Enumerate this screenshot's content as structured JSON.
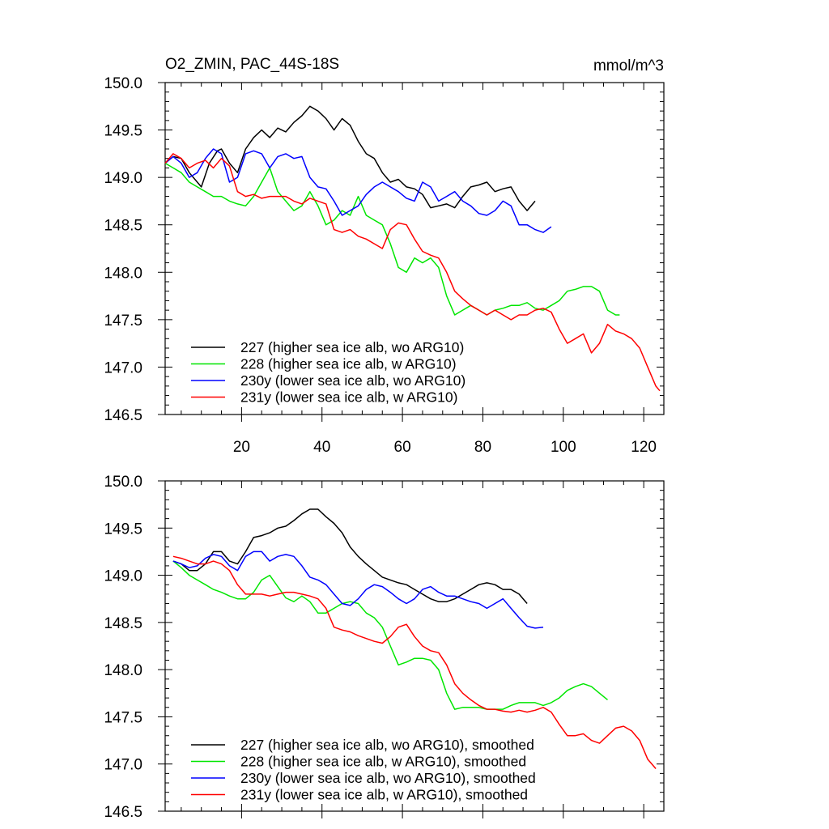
{
  "chart_data": [
    {
      "type": "line",
      "title": "O2_ZMIN, PAC_44S-18S",
      "units": "mmol/m^3",
      "xlim": [
        1,
        125
      ],
      "ylim": [
        146.5,
        150.0
      ],
      "xticks": [
        20,
        40,
        60,
        80,
        100,
        120
      ],
      "yticks": [
        146.5,
        147.0,
        147.5,
        148.0,
        148.5,
        149.0,
        149.5,
        150.0
      ],
      "ytick_labels": [
        "146.5",
        "147.0",
        "147.5",
        "148.0",
        "148.5",
        "149.0",
        "149.5",
        "150.0"
      ],
      "grid": false,
      "legend_position": "bottom-left",
      "series": [
        {
          "name": "227 (higher sea ice alb, wo ARG10)",
          "color": "#000000",
          "x": [
            1,
            3,
            5,
            7,
            9,
            10,
            12,
            14,
            15,
            17,
            19,
            21,
            23,
            25,
            27,
            29,
            31,
            33,
            35,
            37,
            39,
            41,
            43,
            45,
            47,
            49,
            51,
            53,
            55,
            57,
            59,
            61,
            63,
            65,
            67,
            69,
            71,
            73,
            75,
            77,
            79,
            81,
            83,
            85,
            87,
            89,
            91,
            93
          ],
          "y": [
            149.15,
            149.22,
            149.2,
            149.05,
            148.95,
            148.9,
            149.15,
            149.28,
            149.3,
            149.15,
            149.05,
            149.3,
            149.42,
            149.5,
            149.42,
            149.52,
            149.48,
            149.58,
            149.65,
            149.75,
            149.7,
            149.62,
            149.5,
            149.62,
            149.55,
            149.38,
            149.25,
            149.2,
            149.05,
            148.95,
            148.98,
            148.9,
            148.88,
            148.82,
            148.68,
            148.7,
            148.72,
            148.68,
            148.8,
            148.9,
            148.92,
            148.95,
            148.85,
            148.88,
            148.9,
            148.75,
            148.65,
            148.75
          ]
        },
        {
          "name": "228 (higher sea ice alb, w ARG10)",
          "color": "#00e600",
          "x": [
            1,
            3,
            5,
            7,
            9,
            11,
            13,
            15,
            17,
            19,
            21,
            23,
            25,
            27,
            29,
            31,
            33,
            35,
            37,
            39,
            41,
            43,
            45,
            47,
            49,
            51,
            53,
            55,
            57,
            59,
            61,
            63,
            65,
            67,
            69,
            71,
            73,
            75,
            77,
            79,
            81,
            83,
            85,
            87,
            89,
            91,
            93,
            95,
            97,
            99,
            101,
            103,
            105,
            107,
            109,
            111,
            113,
            114
          ],
          "y": [
            149.15,
            149.1,
            149.05,
            148.95,
            148.9,
            148.85,
            148.8,
            148.8,
            148.75,
            148.72,
            148.7,
            148.8,
            148.95,
            149.1,
            148.85,
            148.75,
            148.65,
            148.7,
            148.85,
            148.7,
            148.5,
            148.55,
            148.65,
            148.6,
            148.8,
            148.6,
            148.55,
            148.5,
            148.3,
            148.05,
            148.0,
            148.15,
            148.1,
            148.15,
            148.05,
            147.75,
            147.55,
            147.6,
            147.65,
            147.6,
            147.55,
            147.6,
            147.62,
            147.65,
            147.65,
            147.68,
            147.62,
            147.6,
            147.65,
            147.7,
            147.8,
            147.82,
            147.85,
            147.85,
            147.8,
            147.6,
            147.55,
            147.55
          ]
        },
        {
          "name": "230y (lower sea ice alb, wo ARG10)",
          "color": "#0000ff",
          "x": [
            1,
            3,
            5,
            7,
            9,
            11,
            13,
            15,
            17,
            19,
            21,
            23,
            25,
            27,
            29,
            31,
            33,
            35,
            37,
            39,
            41,
            43,
            45,
            47,
            49,
            51,
            53,
            55,
            57,
            59,
            61,
            63,
            65,
            67,
            69,
            71,
            73,
            75,
            77,
            79,
            81,
            83,
            85,
            87,
            89,
            91,
            93,
            95,
            97
          ],
          "y": [
            149.15,
            149.22,
            149.15,
            149.0,
            149.05,
            149.2,
            149.3,
            149.25,
            148.95,
            149.0,
            149.25,
            149.28,
            149.25,
            149.1,
            149.22,
            149.25,
            149.2,
            149.22,
            149.0,
            148.9,
            148.88,
            148.75,
            148.6,
            148.65,
            148.7,
            148.82,
            148.9,
            148.95,
            148.9,
            148.85,
            148.78,
            148.75,
            148.95,
            148.9,
            148.75,
            148.8,
            148.85,
            148.75,
            148.7,
            148.62,
            148.6,
            148.65,
            148.75,
            148.7,
            148.5,
            148.5,
            148.45,
            148.42,
            148.48
          ]
        },
        {
          "name": "231y (lower sea ice alb, w ARG10)",
          "color": "#ff0000",
          "x": [
            1,
            3,
            5,
            7,
            9,
            11,
            13,
            15,
            17,
            19,
            21,
            23,
            25,
            27,
            29,
            31,
            33,
            35,
            37,
            39,
            41,
            43,
            45,
            47,
            49,
            51,
            53,
            55,
            57,
            59,
            61,
            63,
            65,
            67,
            69,
            71,
            73,
            75,
            77,
            79,
            81,
            83,
            85,
            87,
            89,
            91,
            93,
            95,
            97,
            99,
            101,
            103,
            105,
            107,
            109,
            111,
            113,
            115,
            117,
            119,
            121,
            123,
            124
          ],
          "y": [
            149.15,
            149.25,
            149.2,
            149.1,
            149.15,
            149.18,
            149.1,
            149.2,
            149.12,
            148.85,
            148.8,
            148.82,
            148.78,
            148.8,
            148.8,
            148.8,
            148.75,
            148.72,
            148.78,
            148.75,
            148.72,
            148.45,
            148.42,
            148.45,
            148.38,
            148.35,
            148.3,
            148.25,
            148.45,
            148.52,
            148.5,
            148.35,
            148.22,
            148.18,
            148.15,
            148.0,
            147.8,
            147.72,
            147.65,
            147.6,
            147.55,
            147.6,
            147.55,
            147.5,
            147.55,
            147.55,
            147.6,
            147.62,
            147.58,
            147.4,
            147.25,
            147.3,
            147.35,
            147.15,
            147.25,
            147.45,
            147.38,
            147.35,
            147.3,
            147.2,
            147.0,
            146.8,
            146.75
          ]
        }
      ]
    },
    {
      "type": "line",
      "xlim": [
        1,
        125
      ],
      "ylim": [
        146.5,
        150.0
      ],
      "xticks": [
        20,
        40,
        60,
        80,
        100,
        120
      ],
      "yticks": [
        146.5,
        147.0,
        147.5,
        148.0,
        148.5,
        149.0,
        149.5,
        150.0
      ],
      "ytick_labels": [
        "146.5",
        "147.0",
        "147.5",
        "148.0",
        "148.5",
        "149.0",
        "149.5",
        "150.0"
      ],
      "grid": false,
      "legend_position": "bottom-left",
      "series": [
        {
          "name": "227 (higher sea ice alb, wo ARG10), smoothed",
          "color": "#000000",
          "x": [
            3,
            5,
            7,
            9,
            11,
            13,
            15,
            17,
            19,
            21,
            23,
            25,
            27,
            29,
            31,
            33,
            35,
            37,
            39,
            41,
            43,
            45,
            47,
            49,
            51,
            53,
            55,
            57,
            59,
            61,
            63,
            65,
            67,
            69,
            71,
            73,
            75,
            77,
            79,
            81,
            83,
            85,
            87,
            89,
            91
          ],
          "y": [
            149.15,
            149.12,
            149.05,
            149.05,
            149.12,
            149.25,
            149.25,
            149.15,
            149.12,
            149.25,
            149.4,
            149.42,
            149.45,
            149.5,
            149.52,
            149.58,
            149.65,
            149.7,
            149.7,
            149.62,
            149.55,
            149.45,
            149.3,
            149.2,
            149.12,
            149.05,
            148.98,
            148.95,
            148.92,
            148.9,
            148.85,
            148.8,
            148.75,
            148.72,
            148.72,
            148.75,
            148.8,
            148.85,
            148.9,
            148.92,
            148.9,
            148.85,
            148.85,
            148.8,
            148.7
          ]
        },
        {
          "name": "228 (higher sea ice alb, w ARG10), smoothed",
          "color": "#00e600",
          "x": [
            3,
            5,
            7,
            9,
            11,
            13,
            15,
            17,
            19,
            21,
            23,
            25,
            27,
            29,
            31,
            33,
            35,
            37,
            39,
            41,
            43,
            45,
            47,
            49,
            51,
            53,
            55,
            57,
            59,
            61,
            63,
            65,
            67,
            69,
            71,
            73,
            75,
            77,
            79,
            81,
            83,
            85,
            87,
            89,
            91,
            93,
            95,
            97,
            99,
            101,
            103,
            105,
            107,
            109,
            111
          ],
          "y": [
            149.15,
            149.08,
            149.0,
            148.95,
            148.9,
            148.85,
            148.82,
            148.78,
            148.75,
            148.75,
            148.82,
            148.95,
            149.0,
            148.88,
            148.76,
            148.72,
            148.78,
            148.72,
            148.6,
            148.6,
            148.65,
            148.7,
            148.72,
            148.7,
            148.6,
            148.55,
            148.45,
            148.25,
            148.05,
            148.08,
            148.12,
            148.12,
            148.1,
            148.0,
            147.75,
            147.58,
            147.6,
            147.6,
            147.6,
            147.58,
            147.58,
            147.58,
            147.62,
            147.65,
            147.65,
            147.65,
            147.62,
            147.65,
            147.7,
            147.78,
            147.82,
            147.85,
            147.82,
            147.75,
            147.68
          ]
        },
        {
          "name": "230y (lower sea ice alb, wo ARG10), smoothed",
          "color": "#0000ff",
          "x": [
            3,
            5,
            7,
            9,
            11,
            13,
            15,
            17,
            19,
            21,
            23,
            25,
            27,
            29,
            31,
            33,
            35,
            37,
            39,
            41,
            43,
            45,
            47,
            49,
            51,
            53,
            55,
            57,
            59,
            61,
            63,
            65,
            67,
            69,
            71,
            73,
            75,
            77,
            79,
            81,
            83,
            85,
            87,
            89,
            91,
            93,
            95
          ],
          "y": [
            149.15,
            149.12,
            149.08,
            149.1,
            149.18,
            149.22,
            149.2,
            149.1,
            149.05,
            149.2,
            149.25,
            149.25,
            149.15,
            149.2,
            149.22,
            149.2,
            149.1,
            148.98,
            148.95,
            148.9,
            148.8,
            148.7,
            148.68,
            148.75,
            148.85,
            148.9,
            148.88,
            148.82,
            148.75,
            148.7,
            148.75,
            148.85,
            148.88,
            148.82,
            148.78,
            148.78,
            148.75,
            148.72,
            148.7,
            148.65,
            148.7,
            148.75,
            148.65,
            148.55,
            148.46,
            148.44,
            148.45
          ]
        },
        {
          "name": "231y (lower sea ice alb, w ARG10), smoothed",
          "color": "#ff0000",
          "x": [
            3,
            5,
            7,
            9,
            11,
            13,
            15,
            17,
            19,
            21,
            23,
            25,
            27,
            29,
            31,
            33,
            35,
            37,
            39,
            41,
            43,
            45,
            47,
            49,
            51,
            53,
            55,
            57,
            59,
            61,
            63,
            65,
            67,
            69,
            71,
            73,
            75,
            77,
            79,
            81,
            83,
            85,
            87,
            89,
            91,
            93,
            95,
            97,
            99,
            101,
            103,
            105,
            107,
            109,
            111,
            113,
            115,
            117,
            119,
            121,
            123
          ],
          "y": [
            149.2,
            149.18,
            149.15,
            149.12,
            149.12,
            149.15,
            149.12,
            149.05,
            148.9,
            148.8,
            148.8,
            148.8,
            148.78,
            148.8,
            148.82,
            148.82,
            148.8,
            148.78,
            148.75,
            148.65,
            148.45,
            148.42,
            148.4,
            148.36,
            148.33,
            148.3,
            148.28,
            148.35,
            148.45,
            148.48,
            148.35,
            148.25,
            148.2,
            148.18,
            148.05,
            147.85,
            147.75,
            147.68,
            147.62,
            147.58,
            147.58,
            147.56,
            147.55,
            147.57,
            147.55,
            147.57,
            147.6,
            147.55,
            147.42,
            147.3,
            147.3,
            147.32,
            147.25,
            147.22,
            147.3,
            147.38,
            147.4,
            147.35,
            147.25,
            147.05,
            146.95
          ]
        }
      ]
    }
  ]
}
